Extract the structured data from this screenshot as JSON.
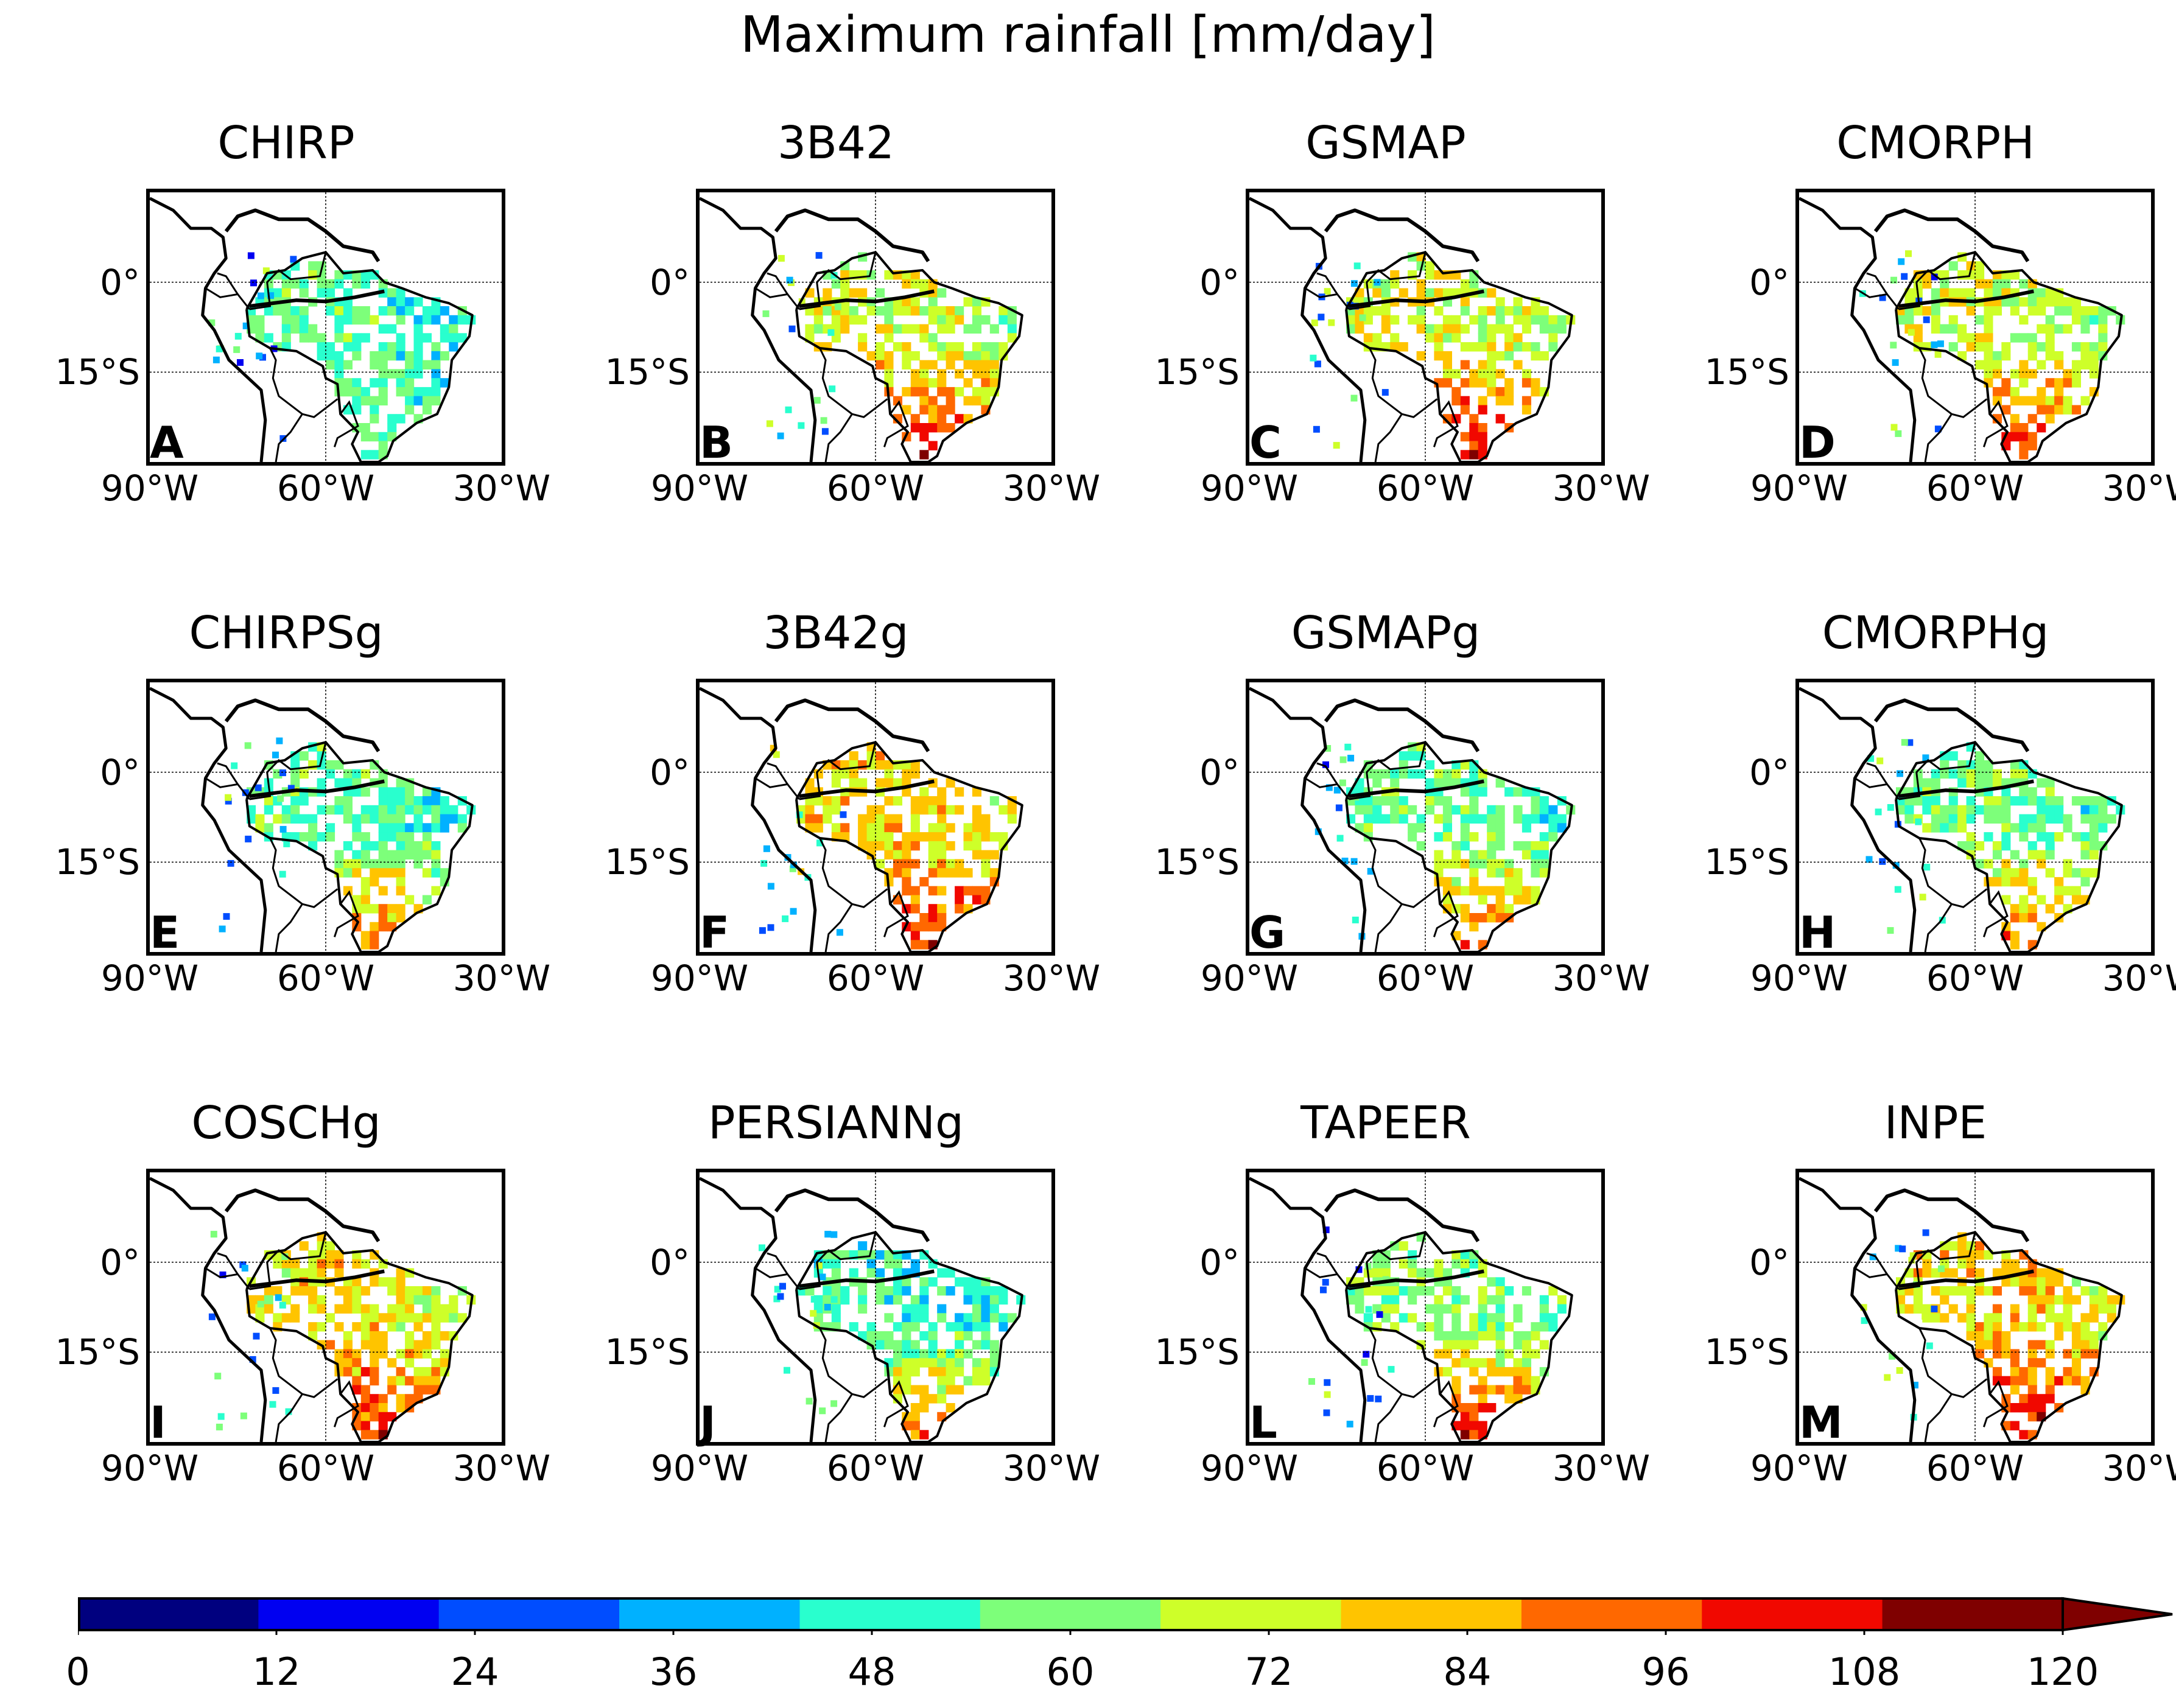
{
  "figure": {
    "title": "Maximum rainfall [mm/day]"
  },
  "axes_labels": {
    "lat": [
      "0°",
      "15°S"
    ],
    "lon": [
      "90°W",
      "60°W",
      "30°W"
    ]
  },
  "chart_data": {
    "type": "heatmap",
    "title": "Maximum rainfall [mm/day]",
    "units": "mm/day",
    "region": "South America / Brazil",
    "lon_range": [
      -90,
      -30
    ],
    "lat_range": [
      -30,
      15
    ],
    "lon_ticks": [
      "90°W",
      "60°W",
      "30°W"
    ],
    "lat_ticks": [
      "0°",
      "15°S"
    ],
    "colorbar": {
      "ticks": [
        0,
        12,
        24,
        36,
        48,
        60,
        72,
        84,
        96,
        108,
        120
      ],
      "colors": [
        "#00007f",
        "#0000f1",
        "#004dff",
        "#00b1ff",
        "#29ffce",
        "#7dff7a",
        "#ceff29",
        "#ffc400",
        "#ff6800",
        "#f10800",
        "#7f0000"
      ],
      "extend": "max"
    },
    "panels": [
      {
        "letter": "A",
        "title": "CHIRP",
        "south_max": 62,
        "north_max": 60,
        "coast_min": 38
      },
      {
        "letter": "B",
        "title": "3B42",
        "south_max": 112,
        "north_max": 78,
        "coast_min": 58
      },
      {
        "letter": "C",
        "title": "GSMAP",
        "south_max": 114,
        "north_max": 80,
        "coast_min": 60
      },
      {
        "letter": "D",
        "title": "CMORPH",
        "south_max": 110,
        "north_max": 76,
        "coast_min": 55
      },
      {
        "letter": "E",
        "title": "CHIRPSg",
        "south_max": 100,
        "north_max": 62,
        "coast_min": 40
      },
      {
        "letter": "F",
        "title": "3B42g",
        "south_max": 113,
        "north_max": 86,
        "coast_min": 70
      },
      {
        "letter": "G",
        "title": "GSMAPg",
        "south_max": 106,
        "north_max": 64,
        "coast_min": 48
      },
      {
        "letter": "H",
        "title": "CMORPHg",
        "south_max": 104,
        "north_max": 64,
        "coast_min": 50
      },
      {
        "letter": "I",
        "title": "COSCHg",
        "south_max": 110,
        "north_max": 84,
        "coast_min": 52
      },
      {
        "letter": "J",
        "title": "PERSIANNg",
        "south_max": 96,
        "north_max": 58,
        "coast_min": 45
      },
      {
        "letter": "L",
        "title": "TAPEER",
        "south_max": 112,
        "north_max": 68,
        "coast_min": 52
      },
      {
        "letter": "M",
        "title": "INPE",
        "south_max": 113,
        "north_max": 88,
        "coast_min": 68
      }
    ]
  }
}
